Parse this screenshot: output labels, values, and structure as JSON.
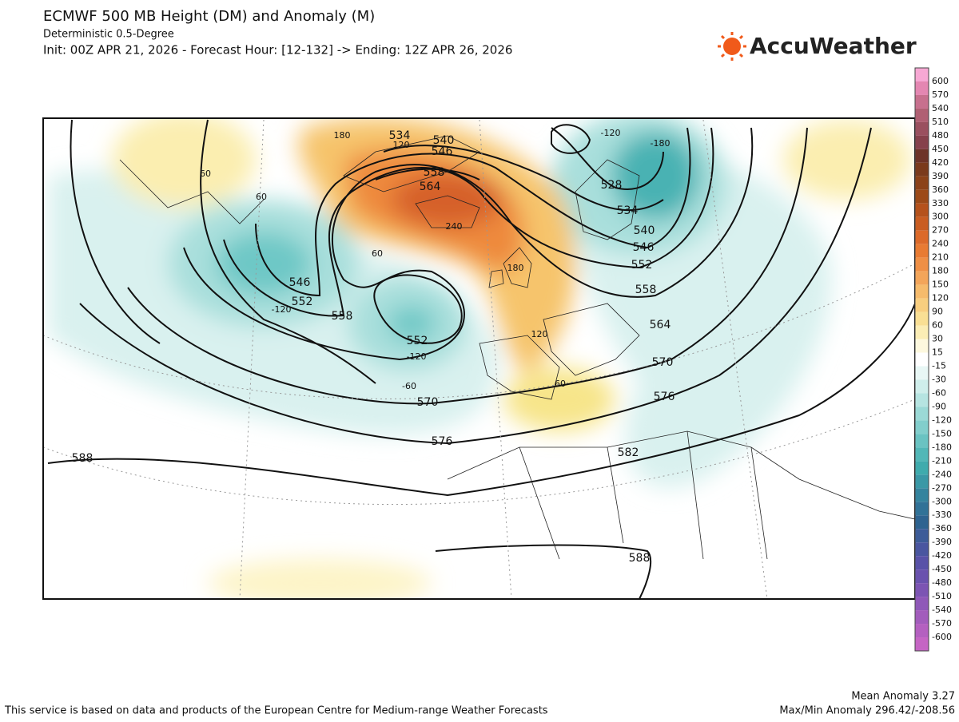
{
  "header": {
    "title": "ECMWF 500 MB Height (DM) and Anomaly (M)",
    "subtitle": "Deterministic 0.5-Degree",
    "init": "Init: 00Z APR 21, 2026 - Forecast Hour: [12-132] -> Ending: 12Z APR 26, 2026",
    "logo": "AccuWeather"
  },
  "map": {
    "height_labels": [
      "534",
      "540",
      "546",
      "558",
      "564",
      "546",
      "552",
      "558",
      "552",
      "570",
      "576",
      "588",
      "582",
      "576",
      "570",
      "564",
      "558",
      "552",
      "546",
      "540",
      "534",
      "528",
      "588"
    ],
    "anomaly_labels": [
      "60",
      "60",
      "180",
      "120",
      "240",
      "60",
      "-120",
      "-120",
      "-60",
      "180",
      "120",
      "60",
      "-120",
      "-180"
    ]
  },
  "colorbar": {
    "labels": [
      600,
      570,
      540,
      510,
      480,
      450,
      420,
      390,
      360,
      330,
      300,
      270,
      240,
      210,
      180,
      150,
      120,
      90,
      60,
      30,
      15,
      -15,
      -30,
      -60,
      -90,
      -120,
      -150,
      -180,
      -210,
      -240,
      -270,
      -300,
      -330,
      -360,
      -390,
      -420,
      -450,
      -480,
      -510,
      -540,
      -570,
      -600
    ],
    "colors": [
      "#f7a8d4",
      "#e487b2",
      "#c7708e",
      "#b06073",
      "#9a505f",
      "#86414c",
      "#6d3328",
      "#7a3a1c",
      "#8b4219",
      "#9c4a18",
      "#b5521c",
      "#c95d22",
      "#dc6a2a",
      "#e87b33",
      "#ef8f45",
      "#f3a55a",
      "#f6bb6c",
      "#f8ce7f",
      "#f9df94",
      "#fbedb5",
      "#fdf8de",
      "#ffffff",
      "#e8f7f5",
      "#cfeeeb",
      "#b6e4e1",
      "#9bd9d6",
      "#82cecc",
      "#6ac3c2",
      "#52b7b7",
      "#3fabad",
      "#3a98a6",
      "#35849e",
      "#317297",
      "#2e6390",
      "#3d5c98",
      "#4a56a0",
      "#5952a8",
      "#6a52ae",
      "#7c54b3",
      "#8f58b8",
      "#a25cbc",
      "#b460c0",
      "#c565c4"
    ]
  },
  "footer": {
    "mean_anomaly": "Mean Anomaly 3.27",
    "max_min": "Max/Min Anomaly 296.42/-208.56",
    "attribution": "This service is based on data and products of the European Centre for Medium-range Weather Forecasts"
  }
}
